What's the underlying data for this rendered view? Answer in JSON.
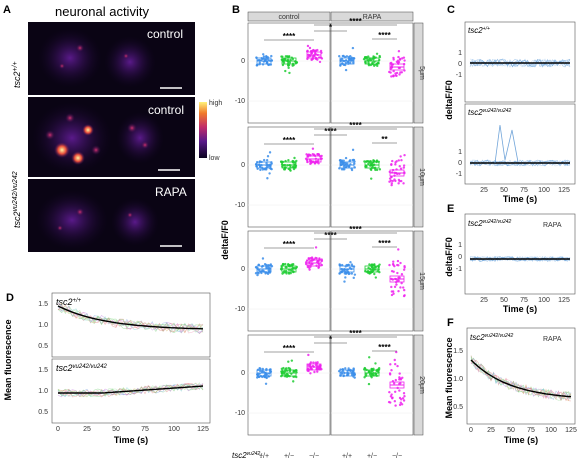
{
  "panelA": {
    "letter": "A",
    "title": "neuronal activity",
    "rows": [
      {
        "label": "control",
        "genotype_base": "tsc2",
        "genotype_sup": "+/+"
      },
      {
        "label": "control",
        "genotype_base": "tsc2",
        "genotype_sup": "vu242/vu242"
      },
      {
        "label": "RAPA"
      }
    ],
    "colorbar": {
      "high": "high",
      "low": "low"
    }
  },
  "panelB": {
    "letter": "B",
    "ylabel": "deltaF/F0",
    "group_strips": [
      "control",
      "RAPA"
    ],
    "facets": [
      "5μm",
      "10μm",
      "15μm",
      "20μm"
    ],
    "yticks": [
      "0",
      "-10"
    ],
    "xticks": [
      "+/+",
      "+/−",
      "−/−",
      "+/+",
      "+/−",
      "−/−"
    ],
    "xprefix_base": "tsc2",
    "xprefix_sup": "vu242",
    "xprefix_colon": ":",
    "colors": {
      "wt": "#3b8eea",
      "het": "#1fcc33",
      "mut": "#ee22ee"
    },
    "significance": [
      [
        "*",
        "****",
        "****",
        "****"
      ],
      [
        "****",
        "****",
        "**",
        "****"
      ],
      [
        "****",
        "****",
        "****",
        "****"
      ],
      [
        "*",
        "****",
        "****",
        "****"
      ]
    ]
  },
  "panelC": {
    "letter": "C",
    "ylabel": "deltaF/F0",
    "xlabel": "Time (s)",
    "xticks": [
      "25",
      "50",
      "75",
      "100",
      "125"
    ],
    "yticks_top": [
      "1",
      "0",
      "-1"
    ],
    "yticks_bottom": [
      "1",
      "0",
      "-1"
    ],
    "sub1": {
      "base": "tsc2",
      "sup": "+/+"
    },
    "sub2": {
      "base": "tsc2",
      "sup": "vu242/vu242"
    }
  },
  "panelD": {
    "letter": "D",
    "ylabel": "Mean fluorescence",
    "xlabel": "Time (s)",
    "xticks": [
      "0",
      "25",
      "50",
      "75",
      "100",
      "125"
    ],
    "yticks": [
      "1.5",
      "1.0",
      "0.5"
    ],
    "sub1": {
      "base": "tsc2",
      "sup": "+/+"
    },
    "sub2": {
      "base": "tsc2",
      "sup": "vu242/vu242"
    }
  },
  "panelE": {
    "letter": "E",
    "ylabel": "deltaF/F0",
    "xlabel": "Time (s)",
    "xticks": [
      "25",
      "50",
      "75",
      "100",
      "125"
    ],
    "yticks": [
      "1",
      "0",
      "-1"
    ],
    "sub": {
      "base": "tsc2",
      "sup": "vu242/vu242"
    },
    "tag": "RAPA"
  },
  "panelF": {
    "letter": "F",
    "ylabel": "Mean fluorescence",
    "xlabel": "Time (s)",
    "xticks": [
      "0",
      "25",
      "50",
      "75",
      "100",
      "125"
    ],
    "yticks": [
      "1.5",
      "1.0",
      "0.5"
    ],
    "sub": {
      "base": "tsc2",
      "sup": "vu242/vu242"
    },
    "tag": "RAPA"
  }
}
